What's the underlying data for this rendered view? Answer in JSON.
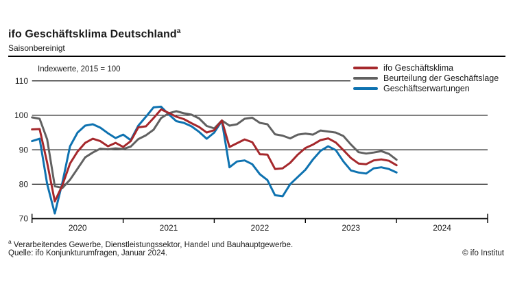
{
  "header": {
    "title": "ifo Geschäftsklima Deutschland",
    "title_superscript": "a",
    "subtitle": "Saisonbereinigt"
  },
  "chart_data": {
    "type": "line",
    "title": "ifo Geschäftsklima Deutschland (saisonbereinigt)",
    "unit_note": "Indexwerte, 2015 = 100",
    "frequency": "monthly",
    "x_start": "2020-01",
    "x_end": "2024-01",
    "ylim": [
      70,
      110
    ],
    "grid": "horizontal",
    "legend_position": "top-right",
    "y_ticks": [
      70,
      80,
      90,
      100,
      110
    ],
    "x_tick_years": [
      "2020",
      "2021",
      "2022",
      "2023",
      "2024"
    ],
    "series": [
      {
        "name": "ifo Geschäftsklima",
        "color": "#a5282c",
        "values": [
          95.9,
          96.0,
          86.2,
          75.0,
          79.7,
          86.0,
          89.5,
          92.0,
          93.2,
          92.5,
          91.0,
          92.0,
          90.8,
          92.5,
          96.5,
          96.8,
          99.2,
          101.7,
          100.7,
          99.6,
          98.9,
          97.7,
          96.6,
          95.0,
          95.7,
          98.5,
          90.8,
          91.9,
          93.0,
          92.2,
          88.7,
          88.6,
          84.4,
          84.6,
          86.2,
          88.6,
          90.5,
          91.5,
          92.8,
          93.3,
          92.1,
          89.9,
          87.6,
          86.0,
          85.8,
          86.9,
          87.2,
          86.8,
          85.5
        ]
      },
      {
        "name": "Beurteilung der Geschäftslage",
        "color": "#616161",
        "values": [
          99.4,
          99.0,
          93.0,
          79.4,
          78.9,
          81.3,
          84.5,
          87.8,
          89.2,
          90.3,
          90.1,
          90.4,
          90.2,
          90.9,
          93.1,
          94.2,
          95.8,
          99.2,
          100.6,
          101.2,
          100.6,
          100.2,
          99.1,
          96.9,
          96.2,
          98.5,
          97.0,
          97.4,
          99.0,
          99.3,
          97.8,
          97.4,
          94.5,
          94.1,
          93.3,
          94.4,
          94.7,
          94.4,
          95.6,
          95.3,
          95.0,
          94.0,
          91.5,
          89.3,
          88.9,
          89.2,
          89.6,
          88.8,
          87.1
        ]
      },
      {
        "name": "Geschäftserwartungen",
        "color": "#0e72b0",
        "values": [
          92.5,
          93.2,
          80.0,
          71.5,
          80.5,
          91.0,
          95.0,
          97.0,
          97.4,
          96.4,
          94.8,
          93.4,
          94.4,
          92.8,
          97.0,
          99.6,
          102.3,
          102.5,
          100.3,
          98.3,
          97.8,
          96.8,
          95.2,
          93.2,
          95.0,
          98.4,
          84.9,
          86.6,
          86.9,
          85.8,
          82.9,
          81.2,
          76.8,
          76.5,
          80.0,
          82.1,
          84.2,
          87.2,
          89.7,
          91.0,
          89.9,
          86.6,
          84.0,
          83.4,
          83.1,
          84.6,
          84.9,
          84.4,
          83.4
        ]
      }
    ]
  },
  "footer": {
    "footnote_marker": "a",
    "footnote": " Verarbeitendes Gewerbe, Dienstleistungssektor, Handel und Bauhauptgewerbe.",
    "source": "Quelle: ifo Konjunkturumfragen, Januar 2024.",
    "copyright": "© ifo Institut"
  }
}
